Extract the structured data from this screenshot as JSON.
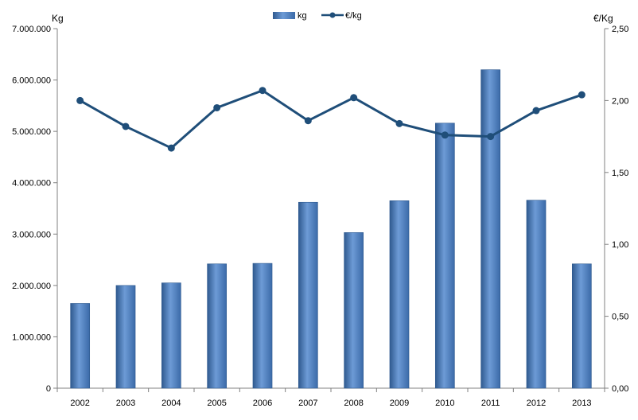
{
  "chart_data": {
    "type": "bar",
    "categories": [
      "2002",
      "2003",
      "2004",
      "2005",
      "2006",
      "2007",
      "2008",
      "2009",
      "2010",
      "2011",
      "2012",
      "2013"
    ],
    "series": [
      {
        "name": "kg",
        "type": "bar",
        "axis": "left",
        "values": [
          1650000,
          2000000,
          2050000,
          2420000,
          2430000,
          3620000,
          3030000,
          3650000,
          5160000,
          6200000,
          3660000,
          2420000
        ]
      },
      {
        "name": "€/kg",
        "type": "line",
        "axis": "right",
        "values": [
          2.0,
          1.82,
          1.67,
          1.95,
          2.07,
          1.86,
          2.02,
          1.84,
          1.76,
          1.75,
          1.93,
          2.04
        ]
      }
    ],
    "y_left": {
      "label": "Kg",
      "min": 0,
      "max": 7000000,
      "ticks": [
        "0",
        "1.000.000",
        "2.000.000",
        "3.000.000",
        "4.000.000",
        "5.000.000",
        "6.000.000",
        "7.000.000"
      ]
    },
    "y_right": {
      "label": "€/Kg",
      "min": 0,
      "max": 2.5,
      "ticks": [
        "0,00",
        "0,50",
        "1,00",
        "1,50",
        "2,00",
        "2,50"
      ]
    },
    "legend": {
      "position": "top-center",
      "entries": [
        "kg",
        "€/kg"
      ]
    },
    "grid": false,
    "colors": {
      "bar": "#4f81bd",
      "bar_dark": "#2f5a8f",
      "line": "#1f4e79",
      "axis": "#808080"
    }
  }
}
